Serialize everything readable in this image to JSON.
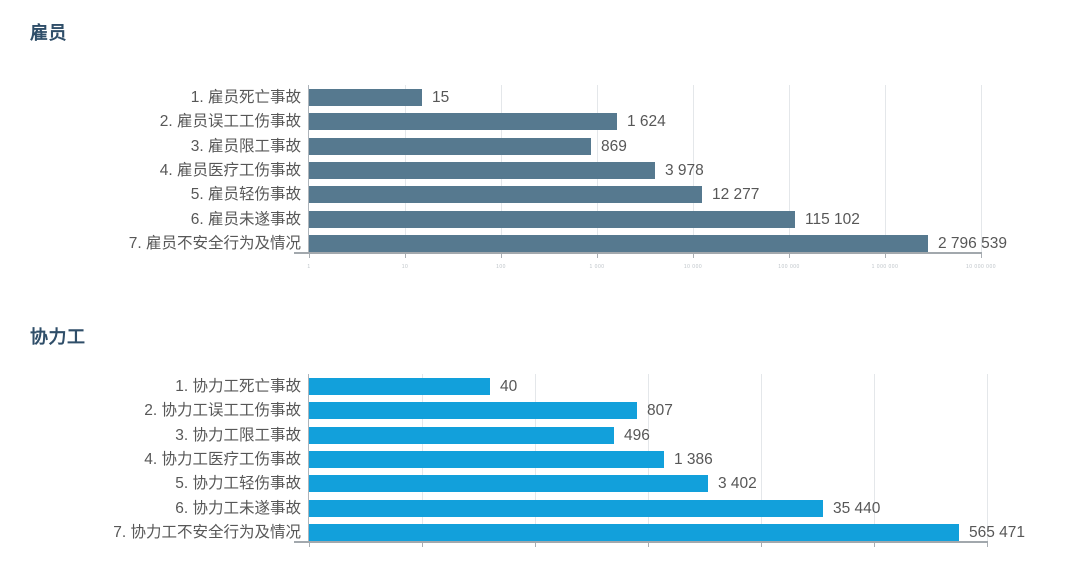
{
  "chart_data": [
    {
      "type": "bar",
      "orientation": "horizontal",
      "title": "雇员",
      "categories": [
        "1. 雇员死亡事故",
        "2. 雇员误工工伤事故",
        "3. 雇员限工事故",
        "4. 雇员医疗工伤事故",
        "5. 雇员轻伤事故",
        "6. 雇员未遂事故",
        "7. 雇员不安全行为及情况"
      ],
      "values": [
        15,
        1624,
        869,
        3978,
        12277,
        115102,
        2796539
      ],
      "value_labels": [
        "15",
        "1 624",
        "869",
        "3 978",
        "12 277",
        "115 102",
        "2 796 539"
      ],
      "scale": "log10",
      "xlim": [
        1,
        10000000
      ],
      "x_tick_labels": [
        "1",
        "10",
        "100",
        "1 000",
        "10 000",
        "100 000",
        "1 000 000",
        "10 000 000"
      ],
      "grid": true,
      "legend": "none",
      "bar_color": "#56798F"
    },
    {
      "type": "bar",
      "orientation": "horizontal",
      "title": "协力工",
      "categories": [
        "1. 协力工死亡事故",
        "2. 协力工误工工伤事故",
        "3. 协力工限工事故",
        "4. 协力工医疗工伤事故",
        "5. 协力工轻伤事故",
        "6. 协力工未遂事故",
        "7. 协力工不安全行为及情况"
      ],
      "values": [
        40,
        807,
        496,
        1386,
        3402,
        35440,
        565471
      ],
      "value_labels": [
        "40",
        "807",
        "496",
        "1 386",
        "3 402",
        "35 440",
        "565 471"
      ],
      "scale": "log10",
      "xlim": [
        1,
        1000000
      ],
      "x_tick_labels": [],
      "grid": true,
      "legend": "none",
      "bar_color": "#12A0DB"
    }
  ],
  "colors": {
    "employee_bar": "#56798F",
    "contractor_bar": "#12A0DB",
    "title_text": "#2F4E69",
    "label_text": "#575757",
    "gridline": "#E4E7EA",
    "axis": "#A2A8AD",
    "background": "#FFFFFF"
  }
}
